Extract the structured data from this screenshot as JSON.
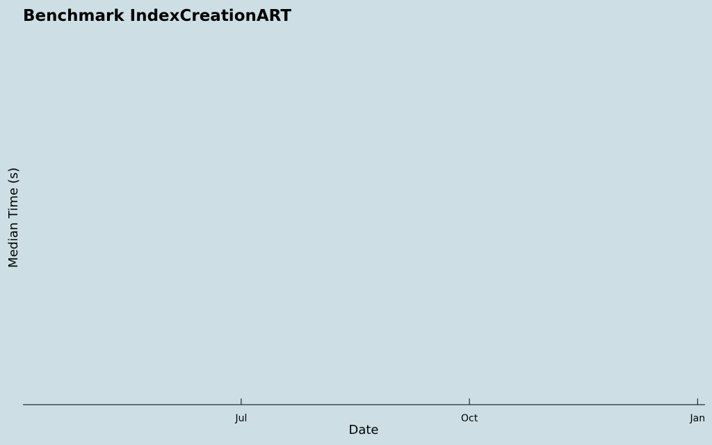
{
  "chart_data": {
    "type": "line",
    "title": "Benchmark IndexCreationART",
    "xlabel": "Date",
    "ylabel": "Median Time (s)",
    "x_ticks": [
      {
        "label": "Jul",
        "date": "2023-07-01"
      },
      {
        "label": "Oct",
        "date": "2023-10-01"
      },
      {
        "label": "Jan",
        "date": "2024-01-01"
      }
    ],
    "xlim": [
      "2023-04-04",
      "2024-01-04"
    ],
    "series": [],
    "grid": false,
    "legend": "none"
  }
}
